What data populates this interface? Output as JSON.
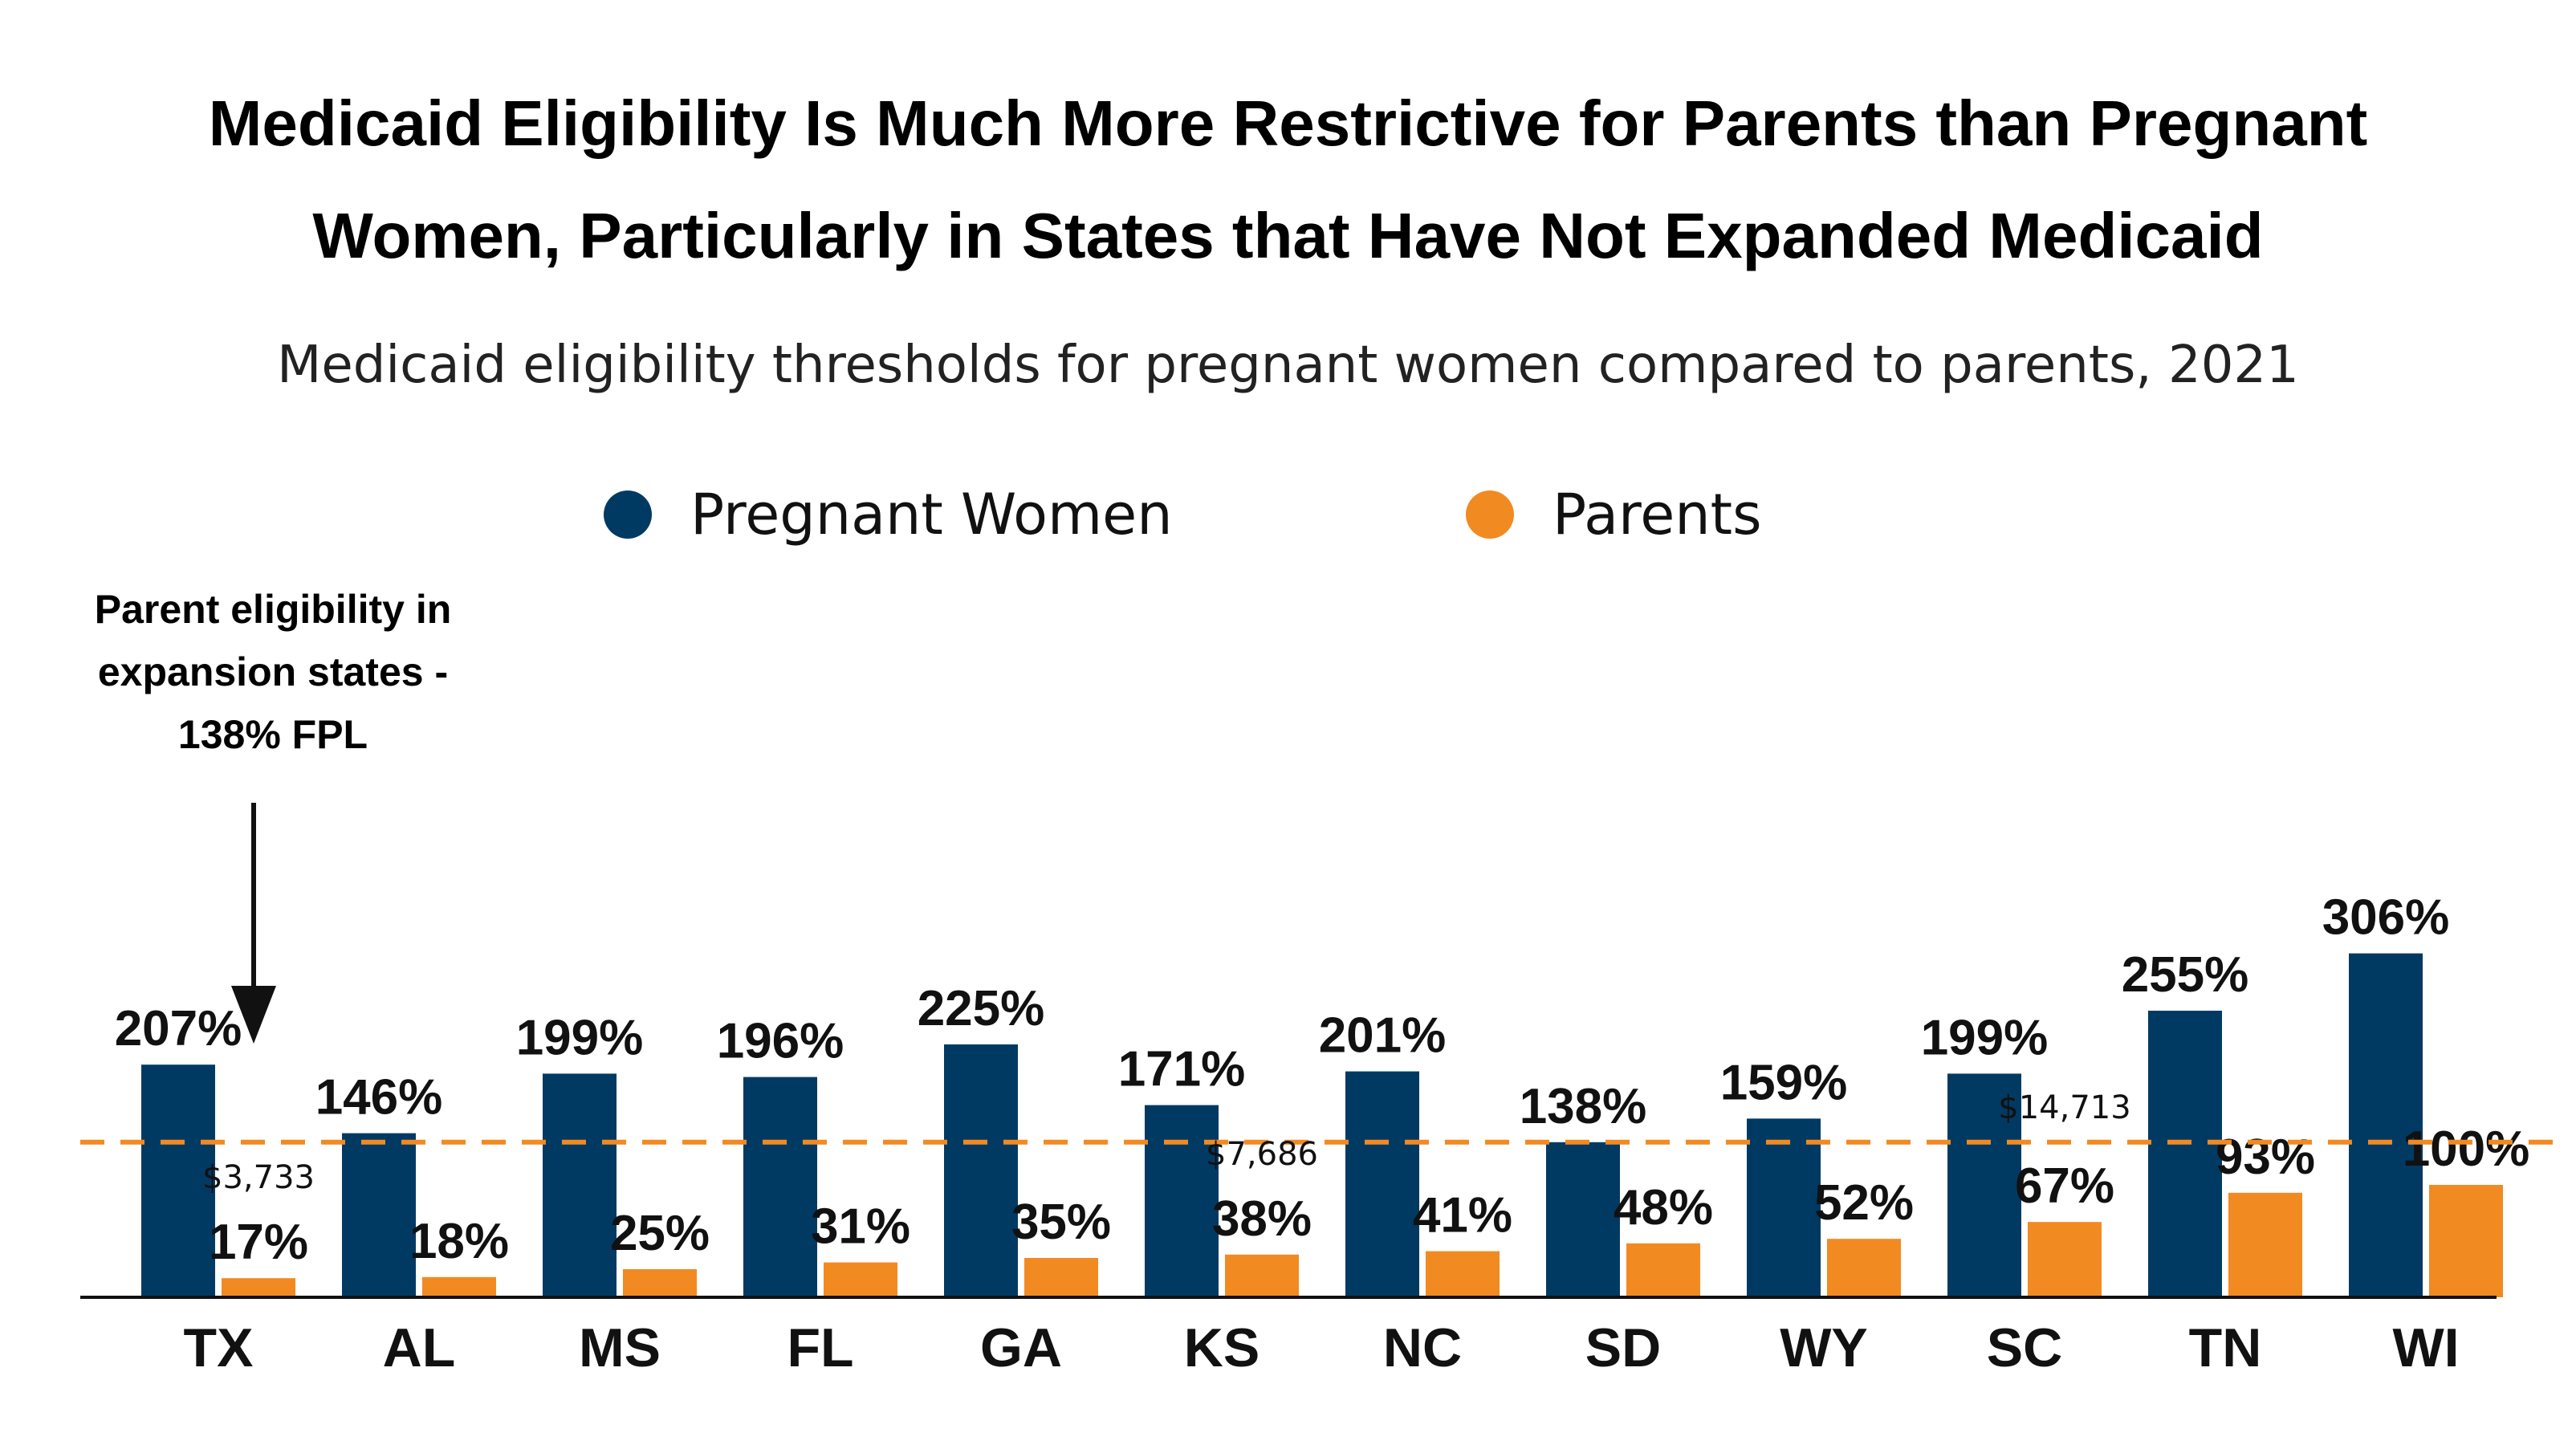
{
  "title_line1": "Medicaid Eligibility Is Much More Restrictive for Parents than Pregnant",
  "title_line2": "Women, Particularly in States that Have Not Expanded Medicaid",
  "subtitle": "Medicaid eligibility thresholds for pregnant women compared to parents, 2021",
  "legend": [
    {
      "name": "Pregnant Women",
      "color": "#003a63"
    },
    {
      "name": "Parents",
      "color": "#f28a22"
    }
  ],
  "annotation": {
    "line1": "Parent eligibility in",
    "line2": "expansion states -",
    "line3": "138% FPL"
  },
  "chart_data": {
    "type": "bar",
    "categories": [
      "TX",
      "AL",
      "MS",
      "FL",
      "GA",
      "KS",
      "NC",
      "SD",
      "WY",
      "SC",
      "TN",
      "WI"
    ],
    "series": [
      {
        "name": "Pregnant Women",
        "color": "#003a63",
        "values": [
          207,
          146,
          199,
          196,
          225,
          171,
          201,
          138,
          159,
          199,
          255,
          306
        ],
        "labels": [
          "207%",
          "146%",
          "199%",
          "196%",
          "225%",
          "171%",
          "201%",
          "138%",
          "159%",
          "199%",
          "255%",
          "306%"
        ]
      },
      {
        "name": "Parents",
        "color": "#f28a22",
        "values": [
          17,
          18,
          25,
          31,
          35,
          38,
          41,
          48,
          52,
          67,
          93,
          100
        ],
        "labels": [
          "17%",
          "18%",
          "25%",
          "31%",
          "35%",
          "38%",
          "41%",
          "48%",
          "52%",
          "67%",
          "93%",
          "100%"
        ]
      }
    ],
    "reference_line": {
      "value": 138,
      "color": "#f28a22",
      "style": "dashed"
    },
    "dollar_annotations": [
      {
        "category": "TX",
        "text": "$3,733"
      },
      {
        "category": "KS",
        "text": "$7,686"
      },
      {
        "category": "SC",
        "text": "$14,713"
      }
    ],
    "ylim": [
      0,
      306
    ],
    "grid": false,
    "legend_position": "top-center"
  }
}
